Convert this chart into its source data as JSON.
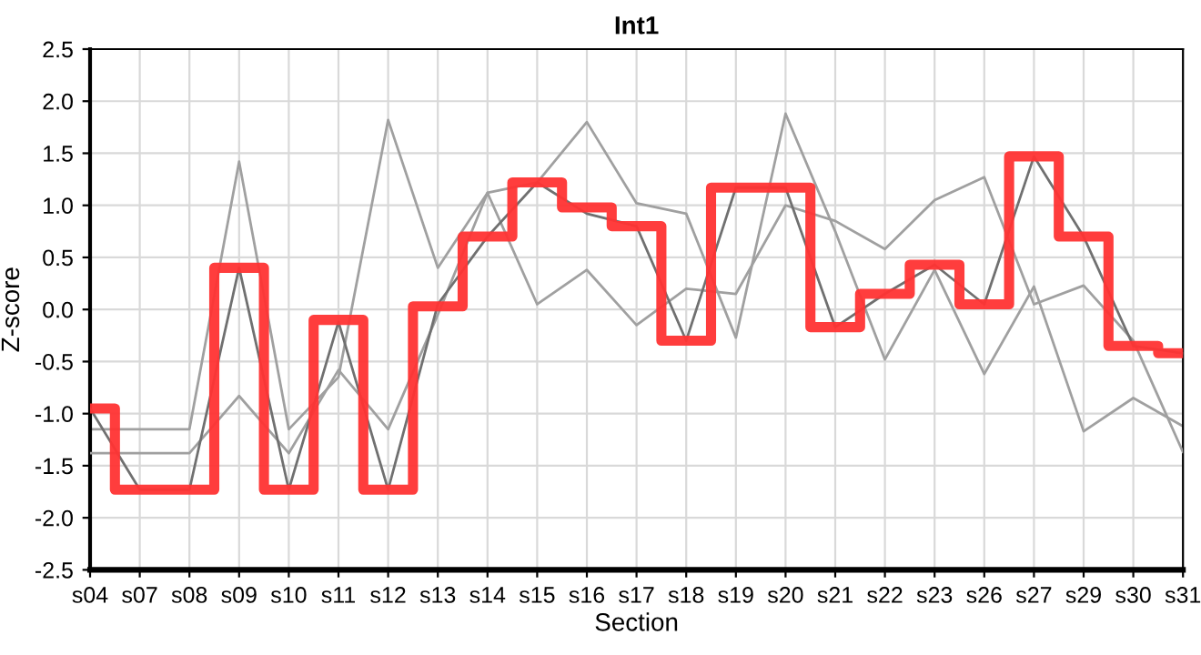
{
  "chart_data": {
    "type": "line",
    "title": "Int1",
    "xlabel": "Section",
    "ylabel": "Z-score",
    "categories": [
      "s04",
      "s07",
      "s08",
      "s09",
      "s10",
      "s11",
      "s12",
      "s13",
      "s14",
      "s15",
      "s16",
      "s17",
      "s18",
      "s19",
      "s20",
      "s21",
      "s22",
      "s23",
      "s26",
      "s27",
      "s29",
      "s30",
      "s31"
    ],
    "series": [
      {
        "color": "#a0a0a0",
        "values": [
          -1.15,
          -1.15,
          -1.15,
          1.42,
          -1.15,
          -0.65,
          1.82,
          0.4,
          1.12,
          1.22,
          1.8,
          1.02,
          0.92,
          -0.27,
          1.88,
          0.75,
          -0.48,
          0.38,
          -0.62,
          0.22,
          -1.17,
          -0.85,
          -1.12
        ]
      },
      {
        "color": "#a0a0a0",
        "values": [
          -1.38,
          -1.38,
          -1.38,
          -0.83,
          -1.38,
          -0.58,
          -1.15,
          -0.05,
          1.12,
          0.05,
          0.38,
          -0.15,
          0.2,
          0.15,
          1.0,
          0.85,
          0.58,
          1.05,
          1.27,
          0.05,
          0.23,
          -0.3,
          -1.37
        ]
      },
      {
        "color": "#707070",
        "values": [
          -0.95,
          -1.73,
          -1.73,
          0.4,
          -1.73,
          -0.12,
          -1.73,
          0.05,
          0.7,
          1.22,
          0.92,
          0.8,
          -0.3,
          1.17,
          1.17,
          -0.17,
          0.15,
          0.43,
          0.05,
          1.47,
          0.7,
          -0.35,
          -0.42
        ]
      },
      {
        "type": "step",
        "color": "#ff3333",
        "values": [
          -0.95,
          -1.73,
          -1.73,
          0.4,
          -1.73,
          -0.1,
          -1.73,
          0.03,
          0.7,
          1.22,
          0.98,
          0.8,
          -0.3,
          1.17,
          1.17,
          -0.17,
          0.15,
          0.43,
          0.05,
          1.47,
          0.7,
          -0.35,
          -0.42
        ]
      }
    ],
    "ylim": [
      -2.5,
      2.5
    ],
    "yticks": [
      {
        "value": -2.5,
        "label": "-2.5"
      },
      {
        "value": -2,
        "label": "-2.0"
      },
      {
        "value": -1.5,
        "label": "-1.5"
      },
      {
        "value": -1,
        "label": "-1.0"
      },
      {
        "value": -0.5,
        "label": "-0.5"
      },
      {
        "value": 0,
        "label": "0.0"
      },
      {
        "value": 0.5,
        "label": "0.5"
      },
      {
        "value": 1,
        "label": "1.0"
      },
      {
        "value": 1.5,
        "label": "1.5"
      },
      {
        "value": 2,
        "label": "2.0"
      },
      {
        "value": 2.5,
        "label": "2.5"
      }
    ],
    "grid": true,
    "marker": "none",
    "line_style": "solid"
  }
}
